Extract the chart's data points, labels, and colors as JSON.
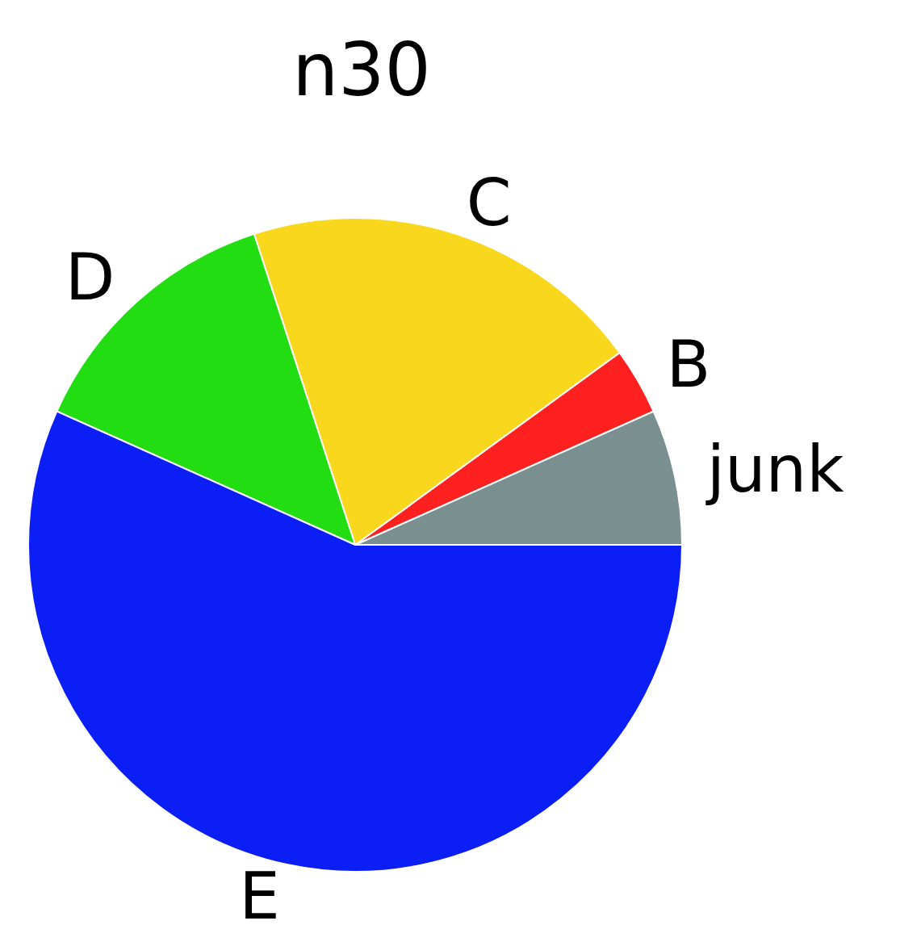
{
  "chart_data": {
    "type": "pie",
    "title": "n30",
    "categories": [
      "junk",
      "B",
      "C",
      "D",
      "E"
    ],
    "values": [
      6.7,
      3.3,
      20,
      13.3,
      56.7
    ],
    "colors": [
      "#7a9090",
      "#ff2020",
      "#f9d71c",
      "#22dd11",
      "#0a1ef5"
    ]
  }
}
